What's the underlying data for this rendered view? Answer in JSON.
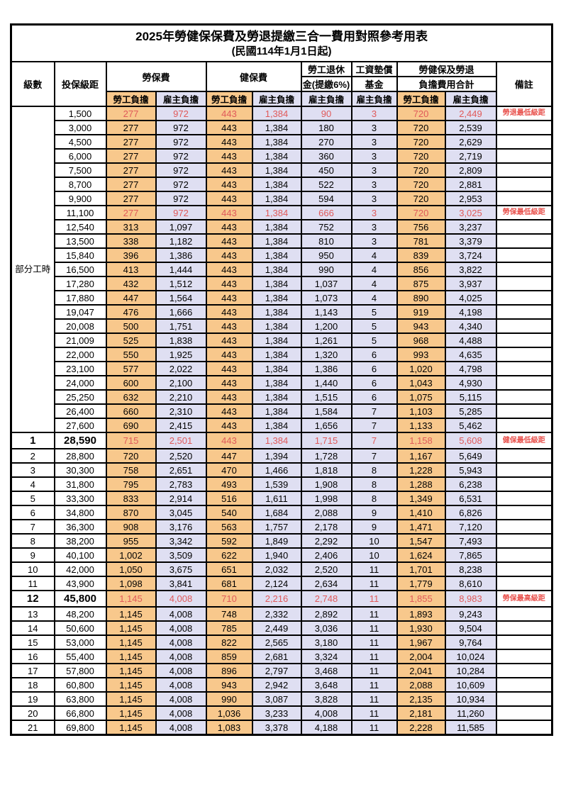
{
  "title": "2025年勞健保保費及勞退提繳三合一費用對照參考用表",
  "subtitle": "(民國114年1月1日起)",
  "colors": {
    "worker_column_bg": "#F8C88C",
    "employer_column_bg": "#DFDFF2",
    "highlight_text": "#E05A5A",
    "border": "#000000"
  },
  "header": {
    "level": "級數",
    "bracket": "投保級距",
    "labor_fee": "勞保費",
    "health_fee": "健保費",
    "pension_line1": "勞工退休",
    "pension_line2": "金(提繳6%)",
    "wage_fund_line1": "工資墊償",
    "wage_fund_line2": "基金",
    "total_line1": "勞健保及勞退",
    "total_line2": "負擔費用合計",
    "remark": "備註",
    "worker": "勞工負擔",
    "employer": "雇主負擔"
  },
  "part_time_label": "部分工時",
  "part_time_row_count": 23,
  "rows": [
    {
      "level": "",
      "bracket": "1,500",
      "values": [
        "277",
        "972",
        "443",
        "1,384",
        "90",
        "3",
        "720",
        "2,449"
      ],
      "remark": "勞退最低級距",
      "red": true,
      "hl": false
    },
    {
      "level": "",
      "bracket": "3,000",
      "values": [
        "277",
        "972",
        "443",
        "1,384",
        "180",
        "3",
        "720",
        "2,539"
      ],
      "remark": "",
      "red": false,
      "hl": false
    },
    {
      "level": "",
      "bracket": "4,500",
      "values": [
        "277",
        "972",
        "443",
        "1,384",
        "270",
        "3",
        "720",
        "2,629"
      ],
      "remark": "",
      "red": false,
      "hl": false
    },
    {
      "level": "",
      "bracket": "6,000",
      "values": [
        "277",
        "972",
        "443",
        "1,384",
        "360",
        "3",
        "720",
        "2,719"
      ],
      "remark": "",
      "red": false,
      "hl": false
    },
    {
      "level": "",
      "bracket": "7,500",
      "values": [
        "277",
        "972",
        "443",
        "1,384",
        "450",
        "3",
        "720",
        "2,809"
      ],
      "remark": "",
      "red": false,
      "hl": false
    },
    {
      "level": "",
      "bracket": "8,700",
      "values": [
        "277",
        "972",
        "443",
        "1,384",
        "522",
        "3",
        "720",
        "2,881"
      ],
      "remark": "",
      "red": false,
      "hl": false
    },
    {
      "level": "",
      "bracket": "9,900",
      "values": [
        "277",
        "972",
        "443",
        "1,384",
        "594",
        "3",
        "720",
        "2,953"
      ],
      "remark": "",
      "red": false,
      "hl": false
    },
    {
      "level": "",
      "bracket": "11,100",
      "values": [
        "277",
        "972",
        "443",
        "1,384",
        "666",
        "3",
        "720",
        "3,025"
      ],
      "remark": "勞保最低級距",
      "red": true,
      "hl": false
    },
    {
      "level": "",
      "bracket": "12,540",
      "values": [
        "313",
        "1,097",
        "443",
        "1,384",
        "752",
        "3",
        "756",
        "3,237"
      ],
      "remark": "",
      "red": false,
      "hl": false
    },
    {
      "level": "",
      "bracket": "13,500",
      "values": [
        "338",
        "1,182",
        "443",
        "1,384",
        "810",
        "3",
        "781",
        "3,379"
      ],
      "remark": "",
      "red": false,
      "hl": false
    },
    {
      "level": "",
      "bracket": "15,840",
      "values": [
        "396",
        "1,386",
        "443",
        "1,384",
        "950",
        "4",
        "839",
        "3,724"
      ],
      "remark": "",
      "red": false,
      "hl": false
    },
    {
      "level": "",
      "bracket": "16,500",
      "values": [
        "413",
        "1,444",
        "443",
        "1,384",
        "990",
        "4",
        "856",
        "3,822"
      ],
      "remark": "",
      "red": false,
      "hl": false
    },
    {
      "level": "",
      "bracket": "17,280",
      "values": [
        "432",
        "1,512",
        "443",
        "1,384",
        "1,037",
        "4",
        "875",
        "3,937"
      ],
      "remark": "",
      "red": false,
      "hl": false
    },
    {
      "level": "",
      "bracket": "17,880",
      "values": [
        "447",
        "1,564",
        "443",
        "1,384",
        "1,073",
        "4",
        "890",
        "4,025"
      ],
      "remark": "",
      "red": false,
      "hl": false
    },
    {
      "level": "",
      "bracket": "19,047",
      "values": [
        "476",
        "1,666",
        "443",
        "1,384",
        "1,143",
        "5",
        "919",
        "4,198"
      ],
      "remark": "",
      "red": false,
      "hl": false
    },
    {
      "level": "",
      "bracket": "20,008",
      "values": [
        "500",
        "1,751",
        "443",
        "1,384",
        "1,200",
        "5",
        "943",
        "4,340"
      ],
      "remark": "",
      "red": false,
      "hl": false
    },
    {
      "level": "",
      "bracket": "21,009",
      "values": [
        "525",
        "1,838",
        "443",
        "1,384",
        "1,261",
        "5",
        "968",
        "4,488"
      ],
      "remark": "",
      "red": false,
      "hl": false
    },
    {
      "level": "",
      "bracket": "22,000",
      "values": [
        "550",
        "1,925",
        "443",
        "1,384",
        "1,320",
        "6",
        "993",
        "4,635"
      ],
      "remark": "",
      "red": false,
      "hl": false
    },
    {
      "level": "",
      "bracket": "23,100",
      "values": [
        "577",
        "2,022",
        "443",
        "1,384",
        "1,386",
        "6",
        "1,020",
        "4,798"
      ],
      "remark": "",
      "red": false,
      "hl": false
    },
    {
      "level": "",
      "bracket": "24,000",
      "values": [
        "600",
        "2,100",
        "443",
        "1,384",
        "1,440",
        "6",
        "1,043",
        "4,930"
      ],
      "remark": "",
      "red": false,
      "hl": false
    },
    {
      "level": "",
      "bracket": "25,250",
      "values": [
        "632",
        "2,210",
        "443",
        "1,384",
        "1,515",
        "6",
        "1,075",
        "5,115"
      ],
      "remark": "",
      "red": false,
      "hl": false
    },
    {
      "level": "",
      "bracket": "26,400",
      "values": [
        "660",
        "2,310",
        "443",
        "1,384",
        "1,584",
        "7",
        "1,103",
        "5,285"
      ],
      "remark": "",
      "red": false,
      "hl": false
    },
    {
      "level": "",
      "bracket": "27,600",
      "values": [
        "690",
        "2,415",
        "443",
        "1,384",
        "1,656",
        "7",
        "1,133",
        "5,462"
      ],
      "remark": "",
      "red": false,
      "hl": false
    },
    {
      "level": "1",
      "bracket": "28,590",
      "values": [
        "715",
        "2,501",
        "443",
        "1,384",
        "1,715",
        "7",
        "1,158",
        "5,608"
      ],
      "remark": "健保最低級距",
      "red": true,
      "hl": true
    },
    {
      "level": "2",
      "bracket": "28,800",
      "values": [
        "720",
        "2,520",
        "447",
        "1,394",
        "1,728",
        "7",
        "1,167",
        "5,649"
      ],
      "remark": "",
      "red": false,
      "hl": false
    },
    {
      "level": "3",
      "bracket": "30,300",
      "values": [
        "758",
        "2,651",
        "470",
        "1,466",
        "1,818",
        "8",
        "1,228",
        "5,943"
      ],
      "remark": "",
      "red": false,
      "hl": false
    },
    {
      "level": "4",
      "bracket": "31,800",
      "values": [
        "795",
        "2,783",
        "493",
        "1,539",
        "1,908",
        "8",
        "1,288",
        "6,238"
      ],
      "remark": "",
      "red": false,
      "hl": false
    },
    {
      "level": "5",
      "bracket": "33,300",
      "values": [
        "833",
        "2,914",
        "516",
        "1,611",
        "1,998",
        "8",
        "1,349",
        "6,531"
      ],
      "remark": "",
      "red": false,
      "hl": false
    },
    {
      "level": "6",
      "bracket": "34,800",
      "values": [
        "870",
        "3,045",
        "540",
        "1,684",
        "2,088",
        "9",
        "1,410",
        "6,826"
      ],
      "remark": "",
      "red": false,
      "hl": false
    },
    {
      "level": "7",
      "bracket": "36,300",
      "values": [
        "908",
        "3,176",
        "563",
        "1,757",
        "2,178",
        "9",
        "1,471",
        "7,120"
      ],
      "remark": "",
      "red": false,
      "hl": false
    },
    {
      "level": "8",
      "bracket": "38,200",
      "values": [
        "955",
        "3,342",
        "592",
        "1,849",
        "2,292",
        "10",
        "1,547",
        "7,493"
      ],
      "remark": "",
      "red": false,
      "hl": false
    },
    {
      "level": "9",
      "bracket": "40,100",
      "values": [
        "1,002",
        "3,509",
        "622",
        "1,940",
        "2,406",
        "10",
        "1,624",
        "7,865"
      ],
      "remark": "",
      "red": false,
      "hl": false
    },
    {
      "level": "10",
      "bracket": "42,000",
      "values": [
        "1,050",
        "3,675",
        "651",
        "2,032",
        "2,520",
        "11",
        "1,701",
        "8,238"
      ],
      "remark": "",
      "red": false,
      "hl": false
    },
    {
      "level": "11",
      "bracket": "43,900",
      "values": [
        "1,098",
        "3,841",
        "681",
        "2,124",
        "2,634",
        "11",
        "1,779",
        "8,610"
      ],
      "remark": "",
      "red": false,
      "hl": false
    },
    {
      "level": "12",
      "bracket": "45,800",
      "values": [
        "1,145",
        "4,008",
        "710",
        "2,216",
        "2,748",
        "11",
        "1,855",
        "8,983"
      ],
      "remark": "勞保最高級距",
      "red": true,
      "hl": true
    },
    {
      "level": "13",
      "bracket": "48,200",
      "values": [
        "1,145",
        "4,008",
        "748",
        "2,332",
        "2,892",
        "11",
        "1,893",
        "9,243"
      ],
      "remark": "",
      "red": false,
      "hl": false
    },
    {
      "level": "14",
      "bracket": "50,600",
      "values": [
        "1,145",
        "4,008",
        "785",
        "2,449",
        "3,036",
        "11",
        "1,930",
        "9,504"
      ],
      "remark": "",
      "red": false,
      "hl": false
    },
    {
      "level": "15",
      "bracket": "53,000",
      "values": [
        "1,145",
        "4,008",
        "822",
        "2,565",
        "3,180",
        "11",
        "1,967",
        "9,764"
      ],
      "remark": "",
      "red": false,
      "hl": false
    },
    {
      "level": "16",
      "bracket": "55,400",
      "values": [
        "1,145",
        "4,008",
        "859",
        "2,681",
        "3,324",
        "11",
        "2,004",
        "10,024"
      ],
      "remark": "",
      "red": false,
      "hl": false
    },
    {
      "level": "17",
      "bracket": "57,800",
      "values": [
        "1,145",
        "4,008",
        "896",
        "2,797",
        "3,468",
        "11",
        "2,041",
        "10,284"
      ],
      "remark": "",
      "red": false,
      "hl": false
    },
    {
      "level": "18",
      "bracket": "60,800",
      "values": [
        "1,145",
        "4,008",
        "943",
        "2,942",
        "3,648",
        "11",
        "2,088",
        "10,609"
      ],
      "remark": "",
      "red": false,
      "hl": false
    },
    {
      "level": "19",
      "bracket": "63,800",
      "values": [
        "1,145",
        "4,008",
        "990",
        "3,087",
        "3,828",
        "11",
        "2,135",
        "10,934"
      ],
      "remark": "",
      "red": false,
      "hl": false
    },
    {
      "level": "20",
      "bracket": "66,800",
      "values": [
        "1,145",
        "4,008",
        "1,036",
        "3,233",
        "4,008",
        "11",
        "2,181",
        "11,260"
      ],
      "remark": "",
      "red": false,
      "hl": false
    },
    {
      "level": "21",
      "bracket": "69,800",
      "values": [
        "1,145",
        "4,008",
        "1,083",
        "3,378",
        "4,188",
        "11",
        "2,228",
        "11,585"
      ],
      "remark": "",
      "red": false,
      "hl": false
    }
  ]
}
